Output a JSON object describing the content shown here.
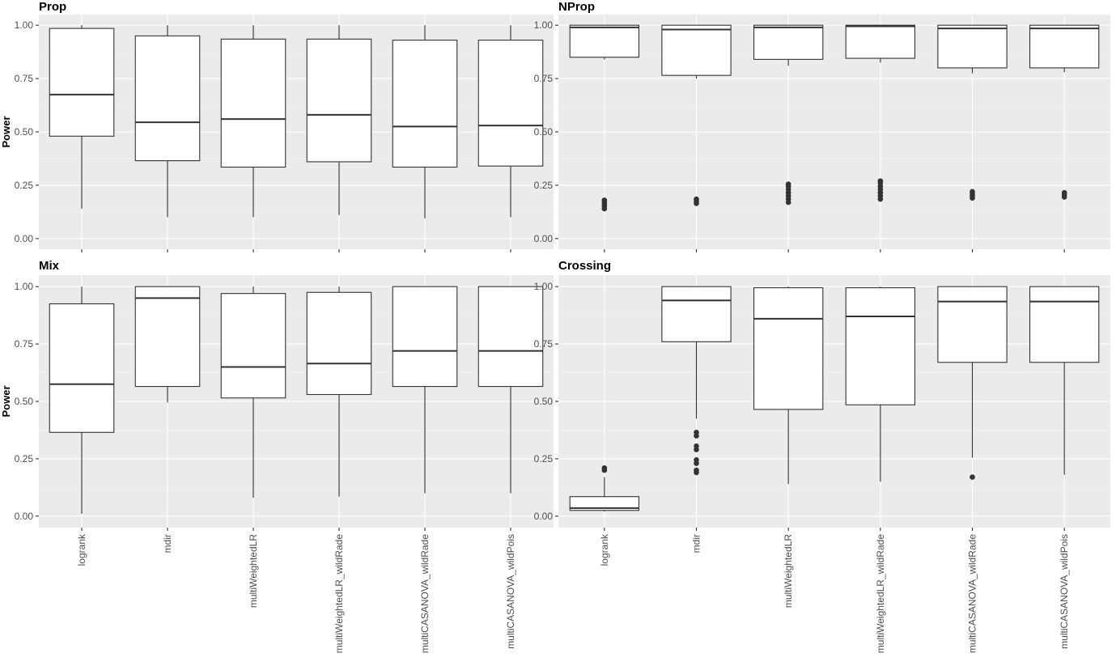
{
  "chart_data": {
    "type": "boxplot",
    "ylabel": "Power",
    "ylim": [
      0,
      1
    ],
    "yticks": [
      "0.00",
      "0.25",
      "0.50",
      "0.75",
      "1.00"
    ],
    "categories": [
      "logrank",
      "mdir",
      "multiWeightedLR",
      "multiWeightedLR_wildRade",
      "multiCASANOVA_wildRade",
      "multiCASANOVA_wildPois"
    ],
    "panels": [
      {
        "title": "Prop",
        "boxes": [
          {
            "lower": 0.14,
            "q1": 0.48,
            "median": 0.675,
            "q3": 0.985,
            "upper": 1.0,
            "outliers": []
          },
          {
            "lower": 0.1,
            "q1": 0.365,
            "median": 0.545,
            "q3": 0.95,
            "upper": 1.0,
            "outliers": []
          },
          {
            "lower": 0.1,
            "q1": 0.335,
            "median": 0.56,
            "q3": 0.935,
            "upper": 1.0,
            "outliers": []
          },
          {
            "lower": 0.11,
            "q1": 0.36,
            "median": 0.58,
            "q3": 0.935,
            "upper": 1.0,
            "outliers": []
          },
          {
            "lower": 0.095,
            "q1": 0.335,
            "median": 0.525,
            "q3": 0.93,
            "upper": 1.0,
            "outliers": []
          },
          {
            "lower": 0.1,
            "q1": 0.34,
            "median": 0.53,
            "q3": 0.93,
            "upper": 1.0,
            "outliers": []
          }
        ]
      },
      {
        "title": "NProp",
        "boxes": [
          {
            "lower": 0.84,
            "q1": 0.85,
            "median": 0.99,
            "q3": 1.0,
            "upper": 1.0,
            "outliers": [
              0.14,
              0.15,
              0.16,
              0.17,
              0.18
            ]
          },
          {
            "lower": 0.75,
            "q1": 0.765,
            "median": 0.98,
            "q3": 1.0,
            "upper": 1.0,
            "outliers": [
              0.165,
              0.175,
              0.185
            ]
          },
          {
            "lower": 0.81,
            "q1": 0.84,
            "median": 0.99,
            "q3": 1.0,
            "upper": 1.0,
            "outliers": [
              0.17,
              0.185,
              0.2,
              0.215,
              0.23,
              0.245,
              0.255
            ]
          },
          {
            "lower": 0.825,
            "q1": 0.845,
            "median": 0.995,
            "q3": 1.0,
            "upper": 1.0,
            "outliers": [
              0.185,
              0.2,
              0.215,
              0.23,
              0.245,
              0.26,
              0.27
            ]
          },
          {
            "lower": 0.775,
            "q1": 0.8,
            "median": 0.985,
            "q3": 1.0,
            "upper": 1.0,
            "outliers": [
              0.19,
              0.2,
              0.21,
              0.22
            ]
          },
          {
            "lower": 0.78,
            "q1": 0.8,
            "median": 0.985,
            "q3": 1.0,
            "upper": 1.0,
            "outliers": [
              0.195,
              0.205,
              0.215
            ]
          }
        ]
      },
      {
        "title": "Mix",
        "boxes": [
          {
            "lower": 0.01,
            "q1": 0.365,
            "median": 0.575,
            "q3": 0.925,
            "upper": 1.0,
            "outliers": []
          },
          {
            "lower": 0.495,
            "q1": 0.565,
            "median": 0.95,
            "q3": 1.0,
            "upper": 1.0,
            "outliers": []
          },
          {
            "lower": 0.08,
            "q1": 0.515,
            "median": 0.65,
            "q3": 0.97,
            "upper": 1.0,
            "outliers": []
          },
          {
            "lower": 0.085,
            "q1": 0.53,
            "median": 0.665,
            "q3": 0.975,
            "upper": 1.0,
            "outliers": []
          },
          {
            "lower": 0.1,
            "q1": 0.565,
            "median": 0.72,
            "q3": 1.0,
            "upper": 1.0,
            "outliers": []
          },
          {
            "lower": 0.1,
            "q1": 0.565,
            "median": 0.72,
            "q3": 1.0,
            "upper": 1.0,
            "outliers": []
          }
        ]
      },
      {
        "title": "Crossing",
        "boxes": [
          {
            "lower": 0.02,
            "q1": 0.025,
            "median": 0.035,
            "q3": 0.085,
            "upper": 0.17,
            "outliers": [
              0.2,
              0.21
            ]
          },
          {
            "lower": 0.425,
            "q1": 0.76,
            "median": 0.94,
            "q3": 1.0,
            "upper": 1.0,
            "outliers": [
              0.19,
              0.2,
              0.23,
              0.245,
              0.29,
              0.305,
              0.35,
              0.365
            ]
          },
          {
            "lower": 0.14,
            "q1": 0.465,
            "median": 0.86,
            "q3": 0.995,
            "upper": 1.0,
            "outliers": []
          },
          {
            "lower": 0.15,
            "q1": 0.485,
            "median": 0.87,
            "q3": 0.995,
            "upper": 1.0,
            "outliers": []
          },
          {
            "lower": 0.255,
            "q1": 0.67,
            "median": 0.935,
            "q3": 1.0,
            "upper": 1.0,
            "outliers": [
              0.17
            ]
          },
          {
            "lower": 0.18,
            "q1": 0.67,
            "median": 0.935,
            "q3": 1.0,
            "upper": 1.0,
            "outliers": []
          }
        ]
      }
    ]
  }
}
